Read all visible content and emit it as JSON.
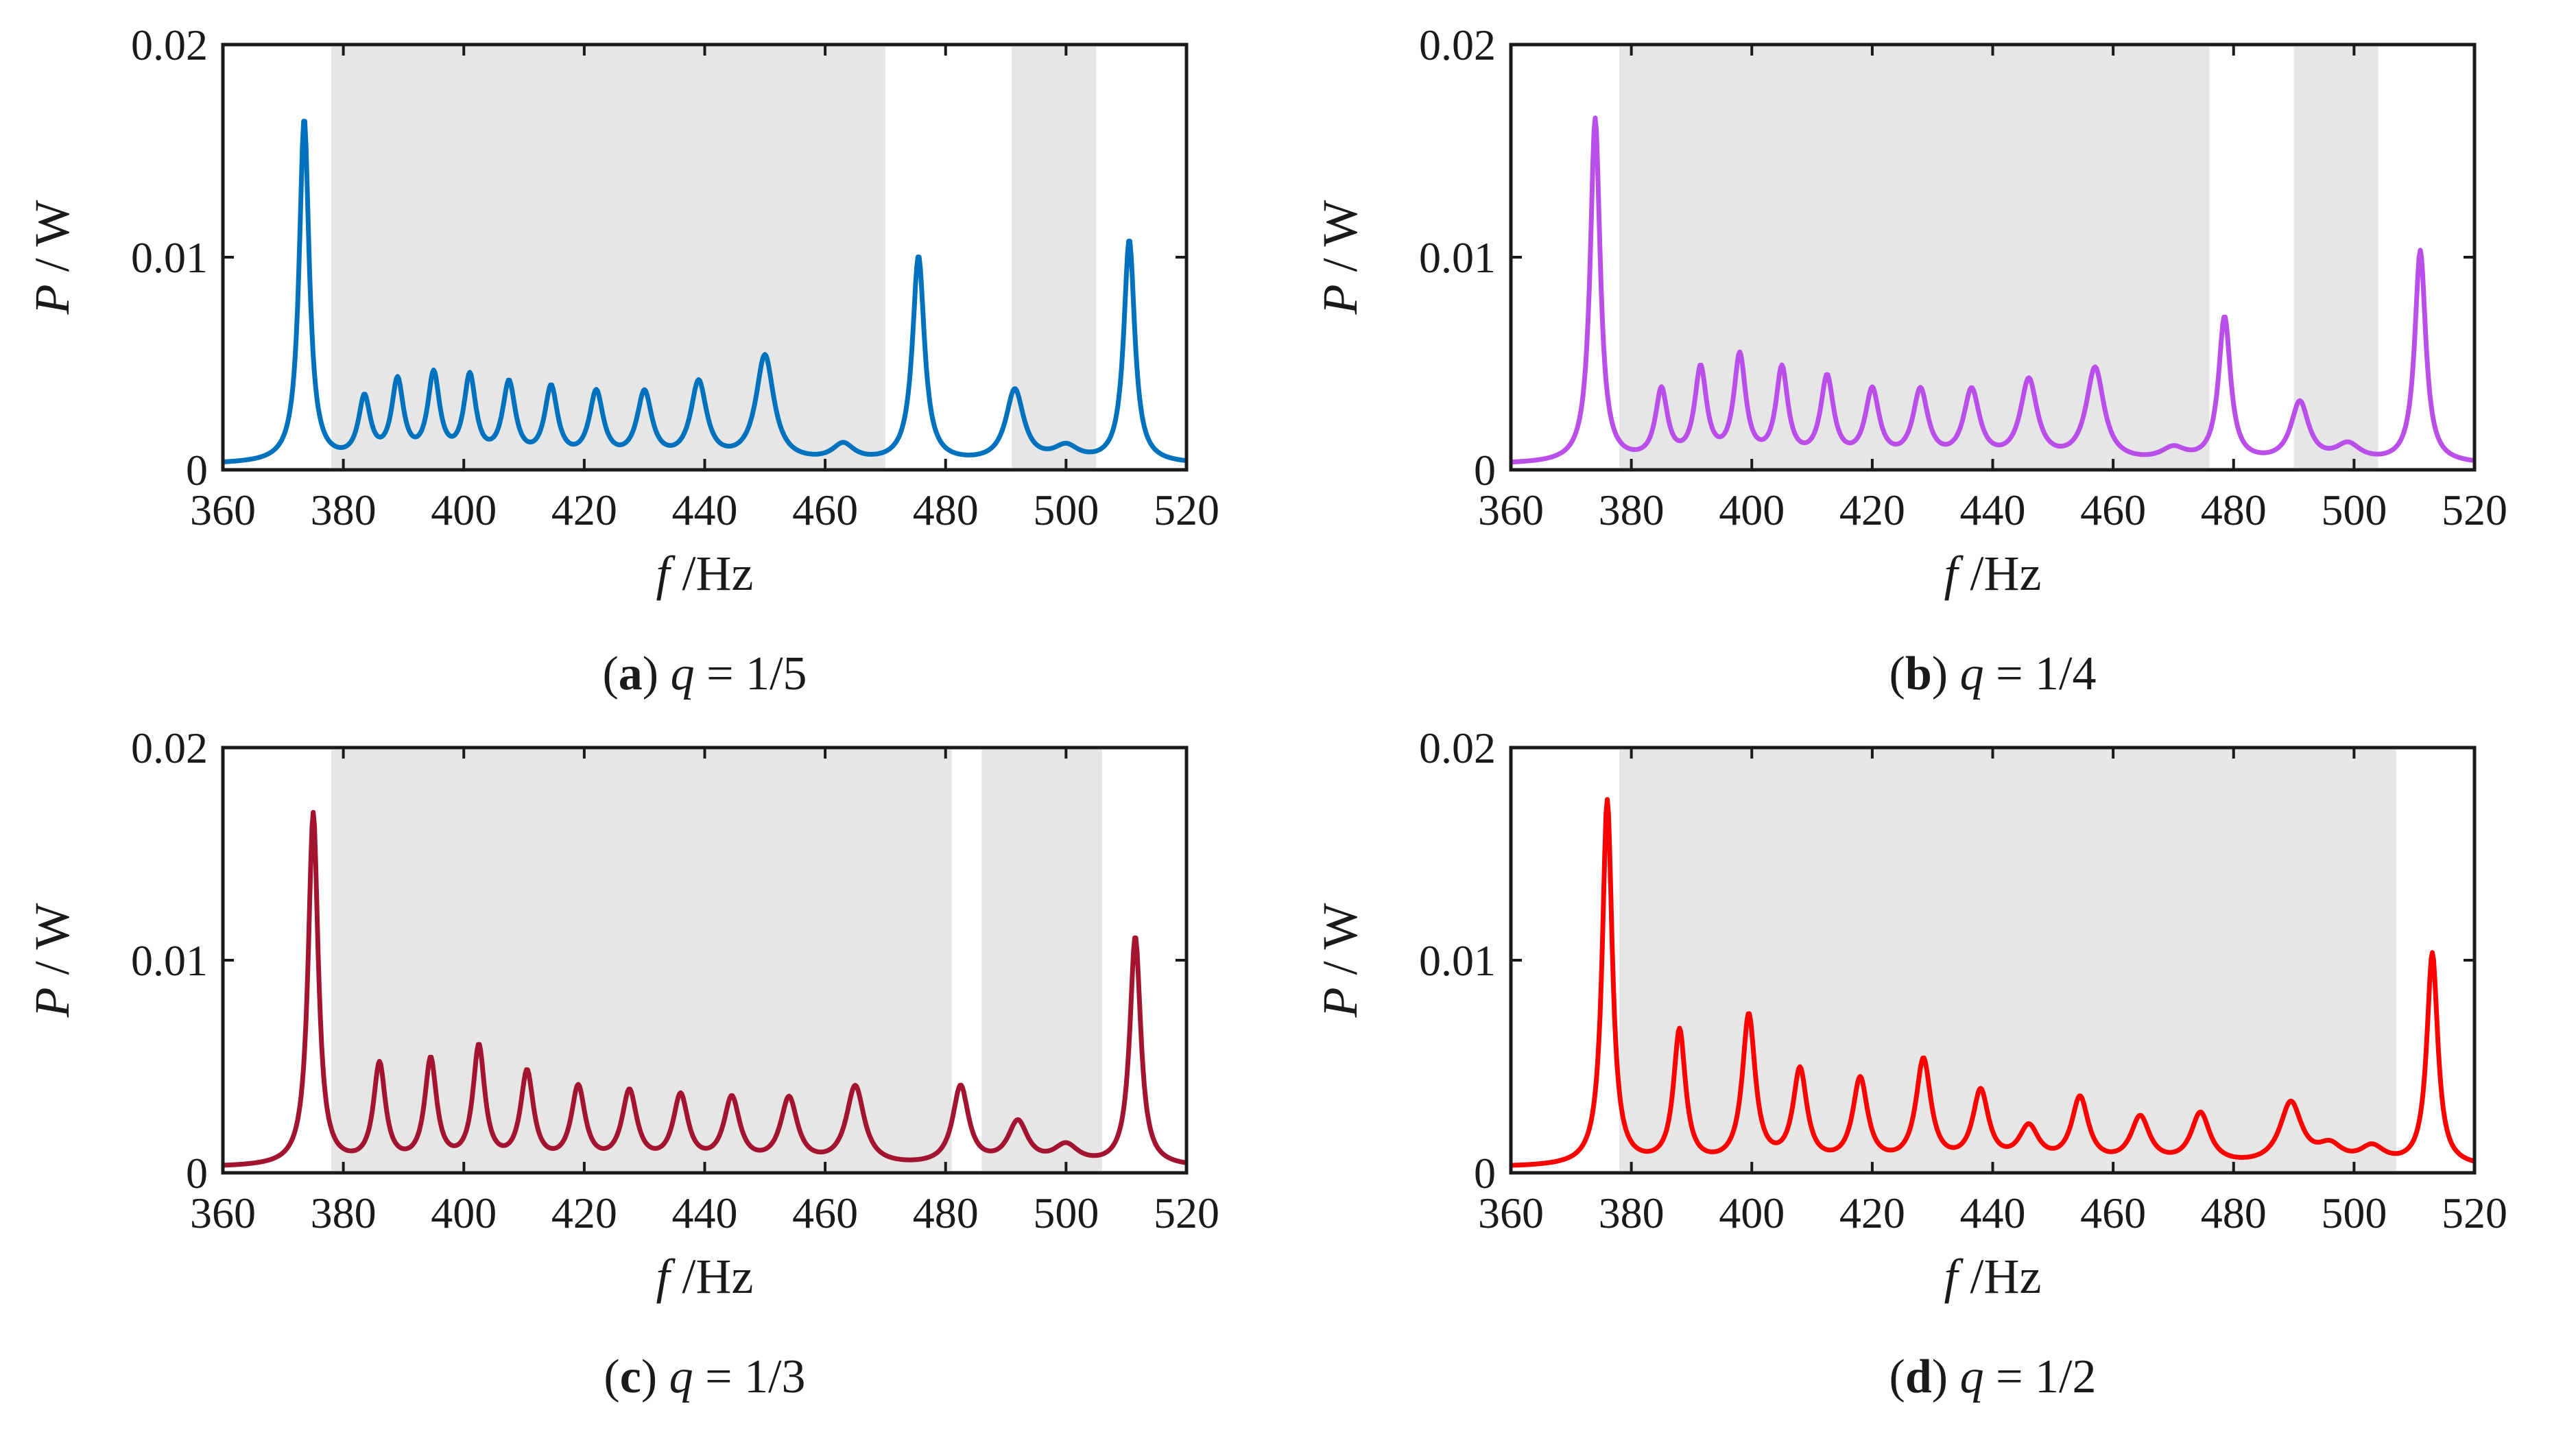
{
  "chart_data": [
    {
      "type": "line",
      "panel": "a",
      "caption": {
        "letter": "a",
        "var": "q",
        "value": "1/5"
      },
      "color": "#0072BD",
      "xlabel": {
        "var": "f",
        "unit": "/Hz"
      },
      "ylabel": {
        "var": "P",
        "unit": " / W"
      },
      "xlim": [
        360,
        520
      ],
      "ylim": [
        0,
        0.02
      ],
      "xticks": [
        360,
        380,
        400,
        420,
        440,
        460,
        480,
        500,
        520
      ],
      "yticks": [
        0,
        0.01,
        0.02
      ],
      "ytick_labels": [
        "0",
        "0.01",
        "0.02"
      ],
      "bandgaps": [
        [
          378,
          470
        ],
        [
          491,
          505
        ]
      ],
      "peaks": [
        [
          373.5,
          0.0162,
          1.0
        ],
        [
          383.5,
          0.0029,
          1.2
        ],
        [
          389,
          0.0037,
          1.2
        ],
        [
          395,
          0.004,
          1.2
        ],
        [
          401,
          0.0039,
          1.2
        ],
        [
          407.5,
          0.0036,
          1.3
        ],
        [
          414.5,
          0.0034,
          1.3
        ],
        [
          422,
          0.0032,
          1.4
        ],
        [
          430,
          0.0032,
          1.5
        ],
        [
          439,
          0.0037,
          1.6
        ],
        [
          450,
          0.005,
          1.8
        ],
        [
          463,
          0.0008,
          2.2
        ],
        [
          475.5,
          0.0097,
          1.2
        ],
        [
          491.5,
          0.0034,
          1.8
        ],
        [
          500,
          0.0007,
          2.5
        ],
        [
          510.5,
          0.0105,
          1.1
        ]
      ]
    },
    {
      "type": "line",
      "panel": "b",
      "caption": {
        "letter": "b",
        "var": "q",
        "value": "1/4"
      },
      "color": "#B94FE8",
      "xlabel": {
        "var": "f",
        "unit": "/Hz"
      },
      "ylabel": {
        "var": "P",
        "unit": " / W"
      },
      "xlim": [
        360,
        520
      ],
      "ylim": [
        0,
        0.02
      ],
      "xticks": [
        360,
        380,
        400,
        420,
        440,
        460,
        480,
        500,
        520
      ],
      "yticks": [
        0,
        0.01,
        0.02
      ],
      "ytick_labels": [
        "0",
        "0.01",
        "0.02"
      ],
      "bandgaps": [
        [
          378,
          476
        ],
        [
          490,
          504
        ]
      ],
      "peaks": [
        [
          374,
          0.0162,
          1.0
        ],
        [
          385,
          0.0033,
          1.2
        ],
        [
          391.5,
          0.0043,
          1.2
        ],
        [
          398,
          0.0049,
          1.2
        ],
        [
          405,
          0.0043,
          1.2
        ],
        [
          412.5,
          0.0039,
          1.3
        ],
        [
          420,
          0.0033,
          1.4
        ],
        [
          428,
          0.0033,
          1.5
        ],
        [
          436.5,
          0.0033,
          1.6
        ],
        [
          446,
          0.0038,
          1.7
        ],
        [
          457,
          0.0044,
          1.8
        ],
        [
          470,
          0.0006,
          2.5
        ],
        [
          478.5,
          0.0068,
          1.2
        ],
        [
          491,
          0.0028,
          1.8
        ],
        [
          499,
          0.0008,
          2.5
        ],
        [
          511,
          0.01,
          1.1
        ]
      ]
    },
    {
      "type": "line",
      "panel": "c",
      "caption": {
        "letter": "c",
        "var": "q",
        "value": "1/3"
      },
      "color": "#A2142F",
      "xlabel": {
        "var": "f",
        "unit": "/Hz"
      },
      "ylabel": {
        "var": "P",
        "unit": " / W"
      },
      "xlim": [
        360,
        520
      ],
      "ylim": [
        0,
        0.02
      ],
      "xticks": [
        360,
        380,
        400,
        420,
        440,
        460,
        480,
        500,
        520
      ],
      "yticks": [
        0,
        0.01,
        0.02
      ],
      "ytick_labels": [
        "0",
        "0.01",
        "0.02"
      ],
      "bandgaps": [
        [
          378,
          481
        ],
        [
          486,
          506
        ]
      ],
      "peaks": [
        [
          375,
          0.0166,
          1.0
        ],
        [
          386,
          0.0047,
          1.2
        ],
        [
          394.5,
          0.0049,
          1.2
        ],
        [
          402.5,
          0.0055,
          1.2
        ],
        [
          410.5,
          0.0043,
          1.3
        ],
        [
          419,
          0.0036,
          1.4
        ],
        [
          427.5,
          0.0034,
          1.5
        ],
        [
          436,
          0.0032,
          1.5
        ],
        [
          444.5,
          0.0031,
          1.6
        ],
        [
          454,
          0.0031,
          1.7
        ],
        [
          465,
          0.0037,
          1.8
        ],
        [
          482.5,
          0.0037,
          1.6
        ],
        [
          492,
          0.002,
          2.0
        ],
        [
          500,
          0.0009,
          2.5
        ],
        [
          511.5,
          0.0108,
          1.1
        ]
      ]
    },
    {
      "type": "line",
      "panel": "d",
      "caption": {
        "letter": "d",
        "var": "q",
        "value": "1/2"
      },
      "color": "#FF0000",
      "xlabel": {
        "var": "f",
        "unit": "/Hz"
      },
      "ylabel": {
        "var": "P",
        "unit": " / W"
      },
      "xlim": [
        360,
        520
      ],
      "ylim": [
        0,
        0.02
      ],
      "xticks": [
        360,
        380,
        400,
        420,
        440,
        460,
        480,
        500,
        520
      ],
      "yticks": [
        0,
        0.01,
        0.02
      ],
      "ytick_labels": [
        "0",
        "0.01",
        "0.02"
      ],
      "bandgaps": [
        [
          378,
          507
        ]
      ],
      "peaks": [
        [
          376,
          0.0172,
          1.0
        ],
        [
          388,
          0.0063,
          1.2
        ],
        [
          399.5,
          0.007,
          1.3
        ],
        [
          408,
          0.0044,
          1.4
        ],
        [
          418,
          0.004,
          1.5
        ],
        [
          428.5,
          0.0049,
          1.5
        ],
        [
          438,
          0.0034,
          1.6
        ],
        [
          446,
          0.0017,
          2.0
        ],
        [
          454.5,
          0.0031,
          1.7
        ],
        [
          464.5,
          0.0022,
          1.9
        ],
        [
          474.5,
          0.0024,
          1.9
        ],
        [
          489.5,
          0.0029,
          2.2
        ],
        [
          496,
          0.0008,
          2.5
        ],
        [
          503,
          0.0008,
          2.5
        ],
        [
          513,
          0.01,
          1.1
        ]
      ]
    }
  ]
}
